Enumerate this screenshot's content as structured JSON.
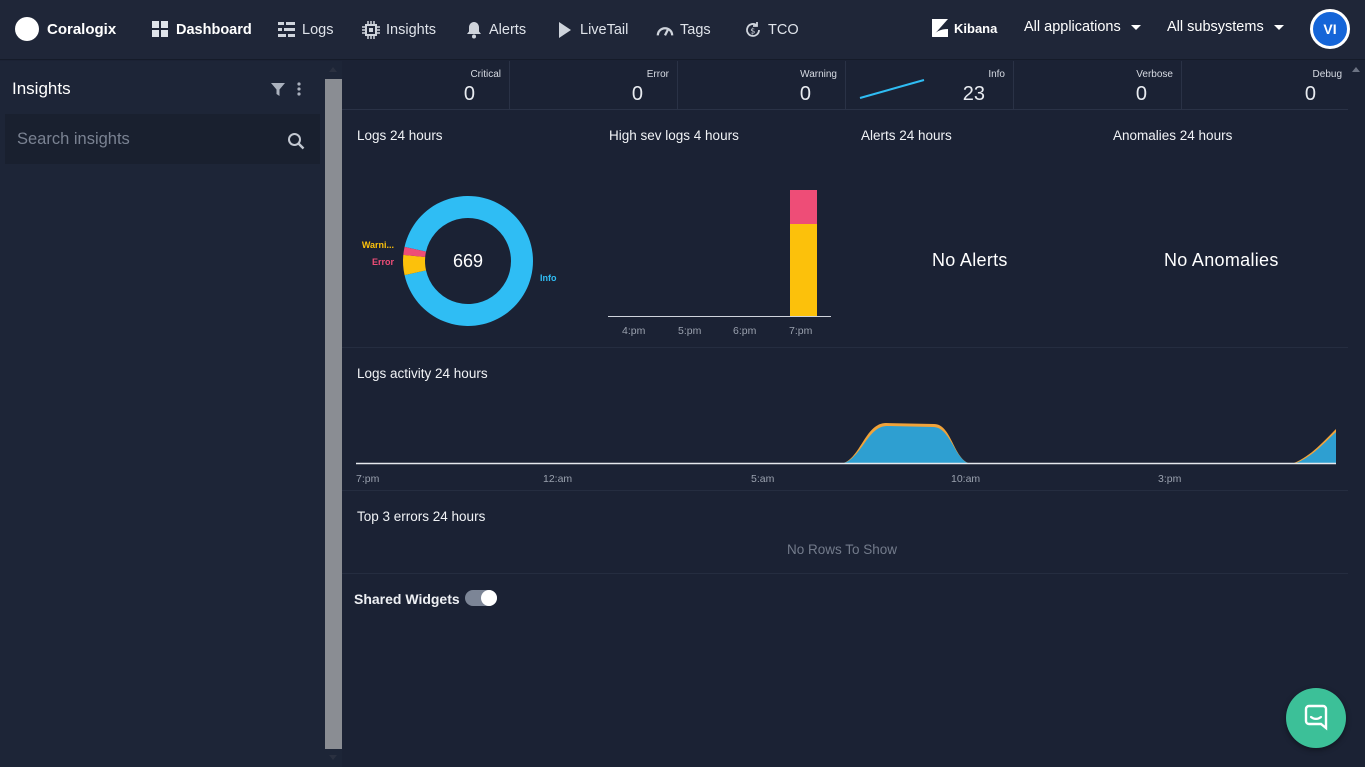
{
  "brand": {
    "name": "Coralogix"
  },
  "nav": [
    {
      "label": "Dashboard",
      "icon": "dashboard-icon",
      "active": true
    },
    {
      "label": "Logs",
      "icon": "logs-icon"
    },
    {
      "label": "Insights",
      "icon": "insights-chip-icon"
    },
    {
      "label": "Alerts",
      "icon": "bell-icon"
    },
    {
      "label": "LiveTail",
      "icon": "play-icon"
    },
    {
      "label": "Tags",
      "icon": "tags-gauge-icon"
    },
    {
      "label": "TCO",
      "icon": "tco-refresh-dollar-icon"
    }
  ],
  "header": {
    "kibana": "Kibana",
    "applications": "All applications",
    "subsystems": "All subsystems",
    "avatar_initials": "VI"
  },
  "sidebar": {
    "title": "Insights",
    "search_placeholder": "Search insights"
  },
  "stats": [
    {
      "label": "Critical",
      "value": "0"
    },
    {
      "label": "Error",
      "value": "0"
    },
    {
      "label": "Warning",
      "value": "0"
    },
    {
      "label": "Info",
      "value": "23"
    },
    {
      "label": "Verbose",
      "value": "0"
    },
    {
      "label": "Debug",
      "value": "0"
    }
  ],
  "widgets": {
    "logs24": {
      "title": "Logs 24 hours",
      "total": "669",
      "legend_warning": "Warni...",
      "legend_error": "Error",
      "legend_info": "Info",
      "slices": [
        {
          "name": "Info",
          "value": 0.93,
          "color": "#2fbdf4"
        },
        {
          "name": "Warning",
          "value": 0.05,
          "color": "#fcc10b"
        },
        {
          "name": "Error",
          "value": 0.02,
          "color": "#ee4d77"
        }
      ]
    },
    "highsev": {
      "title": "High sev logs 4 hours",
      "ticks": [
        "4:pm",
        "5:pm",
        "6:pm",
        "7:pm"
      ],
      "bar": {
        "warning_color": "#fcc10b",
        "error_color": "#ee4d77"
      }
    },
    "alerts": {
      "title": "Alerts 24 hours",
      "empty": "No Alerts"
    },
    "anomalies": {
      "title": "Anomalies 24 hours",
      "empty": "No Anomalies"
    },
    "activity": {
      "title": "Logs activity 24 hours",
      "ticks": [
        "7:pm",
        "12:am",
        "5:am",
        "10:am",
        "3:pm"
      ]
    },
    "errors": {
      "title": "Top 3 errors 24 hours",
      "empty": "No Rows To Show"
    }
  },
  "shared_widgets": {
    "label": "Shared Widgets",
    "enabled": true
  },
  "colors": {
    "accent": "#2fbdf4",
    "warning": "#fcc10b",
    "error": "#ee4d77",
    "chat": "#3cc098"
  }
}
